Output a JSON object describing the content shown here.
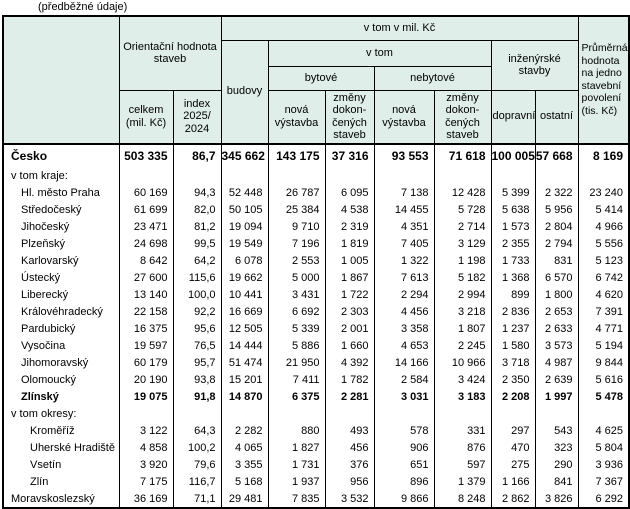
{
  "note": "(předběžné údaje)",
  "colors": {
    "header_bg": "#dfeee8",
    "border": "#000000",
    "text": "#000000"
  },
  "header": {
    "orientacni": "Orientační hodnota staveb",
    "vtom_mil": "v tom v mil. Kč",
    "vtom": "v tom",
    "budovy": "budovy",
    "bytove": "bytové",
    "nebytove": "nebytové",
    "inzenyrske": "inženýrské stavby",
    "celkem": "celkem (mil. Kč)",
    "index": "index 2025/ 2024",
    "nova": "nová výstavba",
    "zmeny": "změny dokon-čených staveb",
    "dopravni": "dopravní",
    "ostatni": "ostatní",
    "prumerna": "Průměrná hodnota na jedno stavební povolení (tis. Kč)"
  },
  "rows": [
    {
      "label": "Česko",
      "indent": 0,
      "bold": true,
      "large": true,
      "values": [
        "503 335",
        "86,7",
        "345 662",
        "143 175",
        "37 316",
        "93 553",
        "71 618",
        "100 005",
        "57 668",
        "8 169"
      ]
    },
    {
      "label": "v tom kraje:",
      "indent": 0,
      "bold": false,
      "values": [
        "",
        "",
        "",
        "",
        "",
        "",
        "",
        "",
        "",
        ""
      ]
    },
    {
      "label": "Hl. město Praha",
      "indent": 1,
      "bold": false,
      "values": [
        "60 169",
        "94,3",
        "52 448",
        "26 787",
        "6 095",
        "7 138",
        "12 428",
        "5 399",
        "2 322",
        "23 240"
      ]
    },
    {
      "label": "Středočeský",
      "indent": 1,
      "bold": false,
      "values": [
        "61 699",
        "82,0",
        "50 105",
        "25 384",
        "4 538",
        "14 455",
        "5 728",
        "5 638",
        "5 956",
        "5 414"
      ]
    },
    {
      "label": "Jihočeský",
      "indent": 1,
      "bold": false,
      "values": [
        "23 471",
        "81,2",
        "19 094",
        "9 710",
        "2 319",
        "4 351",
        "2 714",
        "1 573",
        "2 804",
        "4 966"
      ]
    },
    {
      "label": "Plzeňský",
      "indent": 1,
      "bold": false,
      "values": [
        "24 698",
        "99,5",
        "19 549",
        "7 196",
        "1 819",
        "7 405",
        "3 129",
        "2 355",
        "2 794",
        "5 556"
      ]
    },
    {
      "label": "Karlovarský",
      "indent": 1,
      "bold": false,
      "values": [
        "8 642",
        "64,2",
        "6 078",
        "2 553",
        "1 005",
        "1 322",
        "1 198",
        "1 733",
        "831",
        "5 123"
      ]
    },
    {
      "label": "Ústecký",
      "indent": 1,
      "bold": false,
      "values": [
        "27 600",
        "115,6",
        "19 662",
        "5 000",
        "1 867",
        "7 613",
        "5 182",
        "1 368",
        "6 570",
        "6 742"
      ]
    },
    {
      "label": "Liberecký",
      "indent": 1,
      "bold": false,
      "values": [
        "13 140",
        "100,0",
        "10 441",
        "3 431",
        "1 722",
        "2 294",
        "2 994",
        "899",
        "1 800",
        "4 620"
      ]
    },
    {
      "label": "Královéhradecký",
      "indent": 1,
      "bold": false,
      "values": [
        "22 158",
        "92,2",
        "16 669",
        "6 692",
        "2 303",
        "4 456",
        "3 218",
        "2 836",
        "2 653",
        "7 391"
      ]
    },
    {
      "label": "Pardubický",
      "indent": 1,
      "bold": false,
      "values": [
        "16 375",
        "95,6",
        "12 505",
        "5 339",
        "2 001",
        "3 358",
        "1 807",
        "1 237",
        "2 633",
        "4 771"
      ]
    },
    {
      "label": "Vysočina",
      "indent": 1,
      "bold": false,
      "values": [
        "19 597",
        "76,5",
        "14 444",
        "5 886",
        "1 660",
        "4 653",
        "2 245",
        "1 580",
        "3 573",
        "5 194"
      ]
    },
    {
      "label": "Jihomoravský",
      "indent": 1,
      "bold": false,
      "values": [
        "60 179",
        "95,7",
        "51 474",
        "21 950",
        "4 392",
        "14 166",
        "10 966",
        "3 718",
        "4 987",
        "9 844"
      ]
    },
    {
      "label": "Olomoucký",
      "indent": 1,
      "bold": false,
      "values": [
        "20 190",
        "93,8",
        "15 201",
        "7 411",
        "1 782",
        "2 584",
        "3 424",
        "2 350",
        "2 639",
        "5 616"
      ]
    },
    {
      "label": "Zlínský",
      "indent": 1,
      "bold": true,
      "values": [
        "19 075",
        "91,8",
        "14 870",
        "6 375",
        "2 281",
        "3 031",
        "3 183",
        "2 208",
        "1 997",
        "5 478"
      ]
    },
    {
      "label": "v tom okresy:",
      "indent": 0,
      "bold": false,
      "values": [
        "",
        "",
        "",
        "",
        "",
        "",
        "",
        "",
        "",
        ""
      ]
    },
    {
      "label": "Kroměříž",
      "indent": 2,
      "bold": false,
      "values": [
        "3 122",
        "64,3",
        "2 282",
        "880",
        "493",
        "578",
        "331",
        "297",
        "543",
        "4 625"
      ]
    },
    {
      "label": "Uherské Hradiště",
      "indent": 2,
      "bold": false,
      "values": [
        "4 858",
        "100,2",
        "4 065",
        "1 827",
        "456",
        "906",
        "876",
        "470",
        "323",
        "5 804"
      ]
    },
    {
      "label": "Vsetín",
      "indent": 2,
      "bold": false,
      "values": [
        "3 920",
        "79,6",
        "3 355",
        "1 731",
        "376",
        "651",
        "597",
        "275",
        "290",
        "3 936"
      ]
    },
    {
      "label": "Zlín",
      "indent": 2,
      "bold": false,
      "values": [
        "7 175",
        "116,7",
        "5 168",
        "1 937",
        "956",
        "896",
        "1 379",
        "1 166",
        "841",
        "7 367"
      ]
    },
    {
      "label": "Moravskoslezský",
      "indent": 0,
      "bold": false,
      "values": [
        "36 169",
        "71,1",
        "29 481",
        "7 835",
        "3 532",
        "9 866",
        "8 248",
        "2 862",
        "3 826",
        "6 292"
      ]
    }
  ],
  "column_keys": [
    "celkem",
    "index",
    "budovy",
    "bytove-nova",
    "bytove-zmeny",
    "nebytove-nova",
    "nebytove-zmeny",
    "dopravni",
    "ostatni",
    "prumerna"
  ]
}
